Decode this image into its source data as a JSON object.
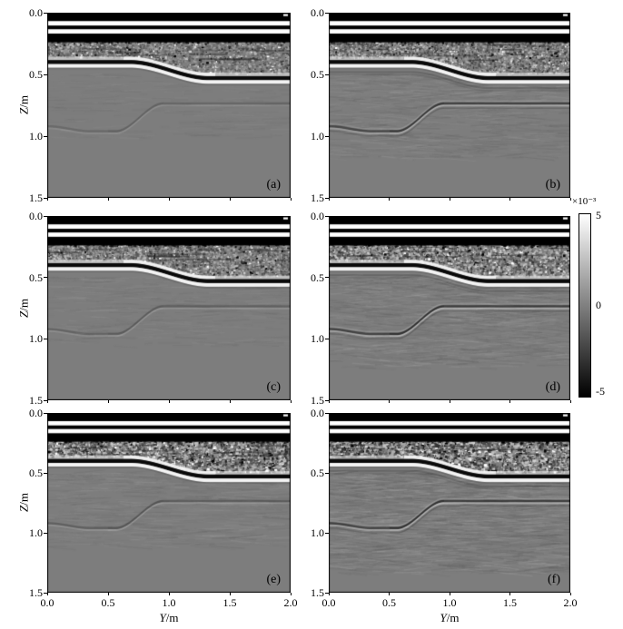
{
  "figure": {
    "background": "#ffffff",
    "text_color": "#000000",
    "description": "3x2 grid of grayscale GPR migrated depth sections labelled (a)-(f) with a shared grayscale colorbar"
  },
  "chart_data": {
    "type": "heatmap",
    "title": "",
    "layout": "3 rows x 2 columns of grayscale depth sections, shared colorbar on right of middle row",
    "x_axis": {
      "var": "Y",
      "unit": "/m",
      "label": "Y/m",
      "range": [
        0.0,
        2.0
      ],
      "ticks": [
        "0.0",
        "0.5",
        "1.0",
        "1.5",
        "2.0"
      ],
      "tick_values": [
        0.0,
        0.5,
        1.0,
        1.5,
        2.0
      ],
      "labels_shown_on": "bottom row only"
    },
    "y_axis": {
      "var": "Z",
      "unit": "/m",
      "label": "Z/m",
      "range": [
        0.0,
        1.5
      ],
      "ticks": [
        "0.0",
        "0.5",
        "1.0",
        "1.5"
      ],
      "tick_values": [
        0.0,
        0.5,
        1.0,
        1.5
      ],
      "direction": "down",
      "title_shown_on": "left column only"
    },
    "colorbar": {
      "scale_label": "×10⁻³",
      "ticks": [
        "5",
        "0",
        "-5"
      ],
      "tick_values": [
        5,
        0,
        -5
      ],
      "amplitude_min": -0.005,
      "amplitude_max": 0.005,
      "top_color": "#ffffff",
      "mid_color": "#808080",
      "bottom_color": "#000000"
    },
    "structure": {
      "background_gray": "#7d7d7d",
      "direct_wave_bands": [
        {
          "z": [
            0.0,
            0.068
          ],
          "v": "min"
        },
        {
          "z": [
            0.068,
            0.104
          ],
          "v": "max"
        },
        {
          "z": [
            0.104,
            0.134
          ],
          "v": "min"
        },
        {
          "z": [
            0.134,
            0.169
          ],
          "v": "max"
        },
        {
          "z": [
            0.169,
            0.235
          ],
          "v": "min"
        }
      ],
      "speckle_zone_top_z": 0.235,
      "interface1_points": [
        [
          0.0,
          0.4
        ],
        [
          0.68,
          0.4
        ],
        [
          1.32,
          0.53
        ],
        [
          2.0,
          0.53
        ]
      ],
      "interface2_points": [
        [
          0.0,
          0.92
        ],
        [
          0.35,
          0.96
        ],
        [
          0.56,
          0.96
        ],
        [
          0.95,
          0.735
        ],
        [
          2.0,
          0.735
        ]
      ]
    },
    "panels": [
      {
        "label": "(a)",
        "row": 0,
        "col": 0,
        "render": {
          "seed": 101,
          "speckleN": 2600,
          "contrast": 60,
          "grain": 2.0,
          "grainY": 1.6,
          "salt": 0.08,
          "streaks": 260,
          "streakAlpha": 0.1,
          "slope": 0.14,
          "texDepth": 1.02,
          "deep": 0.3,
          "echo": false
        }
      },
      {
        "label": "(b)",
        "row": 0,
        "col": 1,
        "render": {
          "seed": 202,
          "speckleN": 3000,
          "contrast": 68,
          "grain": 2.0,
          "grainY": 1.8,
          "salt": 0.1,
          "streaks": 850,
          "streakAlpha": 0.15,
          "slope": 0.26,
          "texDepth": 1.18,
          "deep": 0.8,
          "echo": true
        }
      },
      {
        "label": "(c)",
        "row": 1,
        "col": 0,
        "render": {
          "seed": 303,
          "speckleN": 3200,
          "contrast": 64,
          "grain": 2.0,
          "grainY": 1.8,
          "salt": 0.1,
          "streaks": 430,
          "streakAlpha": 0.12,
          "slope": 0.18,
          "texDepth": 1.06,
          "deep": 0.38,
          "echo": false
        }
      },
      {
        "label": "(d)",
        "row": 1,
        "col": 1,
        "render": {
          "seed": 404,
          "speckleN": 3600,
          "contrast": 78,
          "grain": 2.4,
          "grainY": 2.0,
          "salt": 0.12,
          "streaks": 1250,
          "streakAlpha": 0.18,
          "slope": 0.3,
          "texDepth": 1.24,
          "deep": 0.88,
          "echo": true
        }
      },
      {
        "label": "(e)",
        "row": 2,
        "col": 0,
        "render": {
          "seed": 505,
          "speckleN": 4000,
          "contrast": 82,
          "grain": 2.6,
          "grainY": 2.0,
          "salt": 0.18,
          "streaks": 700,
          "streakAlpha": 0.14,
          "slope": 0.2,
          "texDepth": 1.12,
          "deep": 0.45,
          "echo": false
        }
      },
      {
        "label": "(f)",
        "row": 2,
        "col": 1,
        "render": {
          "seed": 606,
          "speckleN": 4400,
          "contrast": 92,
          "grain": 3.0,
          "grainY": 2.2,
          "salt": 0.2,
          "streaks": 1800,
          "streakAlpha": 0.2,
          "slope": 0.3,
          "texDepth": 1.34,
          "deep": 0.88,
          "echo": true
        }
      }
    ]
  }
}
